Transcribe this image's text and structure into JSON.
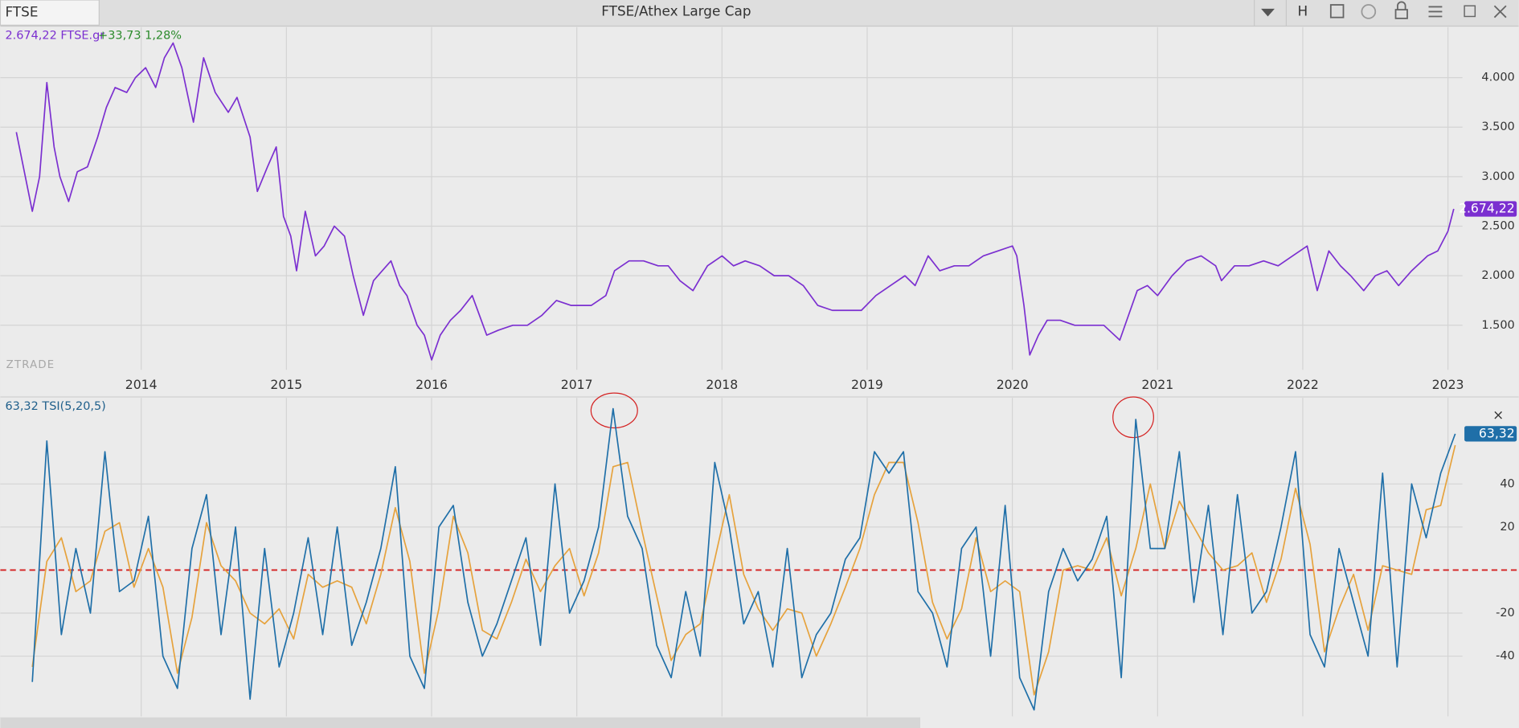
{
  "window": {
    "search": "FTSE",
    "title": "FTSE/Athex Large Cap",
    "button": "H",
    "close": "×"
  },
  "watermark": "ZTRADE",
  "chart_data": [
    {
      "type": "line",
      "legend_price": "2.674,22 FTSE.gr",
      "legend_change": "+33,73 1,28%",
      "x": [
        2013.14,
        2013.25,
        2013.3,
        2013.35,
        2013.4,
        2013.44,
        2013.5,
        2013.56,
        2013.63,
        2013.7,
        2013.76,
        2013.82,
        2013.9,
        2013.96,
        2014.03,
        2014.1,
        2014.16,
        2014.22,
        2014.28,
        2014.36,
        2014.43,
        2014.51,
        2014.6,
        2014.66,
        2014.75,
        2014.8,
        2014.87,
        2014.93,
        2014.98,
        2015.03,
        2015.07,
        2015.13,
        2015.2,
        2015.26,
        2015.33,
        2015.4,
        2015.46,
        2015.53,
        2015.6,
        2015.66,
        2015.72,
        2015.78,
        2015.83,
        2015.9,
        2015.95,
        2016.0,
        2016.06,
        2016.13,
        2016.2,
        2016.28,
        2016.33,
        2016.38,
        2016.46,
        2016.56,
        2016.66,
        2016.76,
        2016.86,
        2016.96,
        2017.1,
        2017.2,
        2017.26,
        2017.36,
        2017.46,
        2017.56,
        2017.63,
        2017.71,
        2017.8,
        2017.9,
        2018.0,
        2018.08,
        2018.16,
        2018.26,
        2018.36,
        2018.46,
        2018.56,
        2018.66,
        2018.76,
        2018.86,
        2018.96,
        2019.06,
        2019.16,
        2019.26,
        2019.33,
        2019.42,
        2019.5,
        2019.6,
        2019.7,
        2019.8,
        2019.9,
        2020.0,
        2020.03,
        2020.08,
        2020.12,
        2020.18,
        2020.24,
        2020.33,
        2020.43,
        2020.53,
        2020.63,
        2020.74,
        2020.8,
        2020.86,
        2020.93,
        2021.0,
        2021.1,
        2021.2,
        2021.3,
        2021.4,
        2021.44,
        2021.53,
        2021.63,
        2021.73,
        2021.83,
        2021.93,
        2022.03,
        2022.1,
        2022.18,
        2022.26,
        2022.33,
        2022.42,
        2022.5,
        2022.58,
        2022.66,
        2022.75,
        2022.86,
        2022.93,
        2023.0,
        2023.04
      ],
      "series": [
        {
          "color": "#7b2fd0",
          "values": [
            3450,
            2650,
            3000,
            3950,
            3300,
            3000,
            2750,
            3050,
            3100,
            3400,
            3700,
            3900,
            3850,
            4000,
            4100,
            3900,
            4200,
            4350,
            4100,
            3550,
            4200,
            3850,
            3650,
            3800,
            3400,
            2850,
            3100,
            3300,
            2600,
            2400,
            2050,
            2650,
            2200,
            2300,
            2500,
            2400,
            2000,
            1600,
            1950,
            2050,
            2150,
            1900,
            1800,
            1500,
            1400,
            1150,
            1400,
            1550,
            1650,
            1800,
            1600,
            1400,
            1450,
            1500,
            1500,
            1600,
            1750,
            1700,
            1700,
            1800,
            2050,
            2150,
            2150,
            2100,
            2100,
            1950,
            1850,
            2100,
            2200,
            2100,
            2150,
            2100,
            2000,
            2000,
            1900,
            1700,
            1650,
            1650,
            1650,
            1800,
            1900,
            2000,
            1900,
            2200,
            2050,
            2100,
            2100,
            2200,
            2250,
            2300,
            2200,
            1700,
            1200,
            1400,
            1550,
            1550,
            1500,
            1500,
            1500,
            1350,
            1600,
            1850,
            1900,
            1800,
            2000,
            2150,
            2200,
            2100,
            1950,
            2100,
            2100,
            2150,
            2100,
            2200,
            2300,
            1850,
            2250,
            2100,
            2000,
            1850,
            2000,
            2050,
            1900,
            2050,
            2200,
            2250,
            2450,
            2674.22
          ]
        }
      ],
      "last_label": "2.674,22",
      "xlim": [
        2013.03,
        2023.1
      ],
      "xticks": [
        2014,
        2015,
        2016,
        2017,
        2018,
        2019,
        2020,
        2021,
        2022,
        2023
      ],
      "ylim": [
        1050,
        4510
      ],
      "yticks": [
        {
          "value": 1500,
          "label": "1.500"
        },
        {
          "value": 2000,
          "label": "2.000"
        },
        {
          "value": 2500,
          "label": "2.500"
        },
        {
          "value": 3000,
          "label": "3.000"
        },
        {
          "value": 3500,
          "label": "3.500"
        },
        {
          "value": 4000,
          "label": "4.000"
        }
      ],
      "grid": true
    },
    {
      "type": "line",
      "legend": "63,32 TSI(5,20,5)",
      "x": [
        2013.25,
        2013.35,
        2013.45,
        2013.55,
        2013.65,
        2013.75,
        2013.85,
        2013.95,
        2014.05,
        2014.15,
        2014.25,
        2014.35,
        2014.45,
        2014.55,
        2014.65,
        2014.75,
        2014.85,
        2014.95,
        2015.05,
        2015.15,
        2015.25,
        2015.35,
        2015.45,
        2015.55,
        2015.65,
        2015.75,
        2015.85,
        2015.95,
        2016.05,
        2016.15,
        2016.25,
        2016.35,
        2016.45,
        2016.55,
        2016.65,
        2016.75,
        2016.85,
        2016.95,
        2017.05,
        2017.15,
        2017.25,
        2017.35,
        2017.45,
        2017.55,
        2017.65,
        2017.75,
        2017.85,
        2017.95,
        2018.05,
        2018.15,
        2018.25,
        2018.35,
        2018.45,
        2018.55,
        2018.65,
        2018.75,
        2018.85,
        2018.95,
        2019.05,
        2019.15,
        2019.25,
        2019.35,
        2019.45,
        2019.55,
        2019.65,
        2019.75,
        2019.85,
        2019.95,
        2020.05,
        2020.15,
        2020.25,
        2020.35,
        2020.45,
        2020.55,
        2020.65,
        2020.75,
        2020.85,
        2020.95,
        2021.05,
        2021.15,
        2021.25,
        2021.35,
        2021.45,
        2021.55,
        2021.65,
        2021.75,
        2021.85,
        2021.95,
        2022.05,
        2022.15,
        2022.25,
        2022.35,
        2022.45,
        2022.55,
        2022.65,
        2022.75,
        2022.85,
        2022.95,
        2023.05
      ],
      "series": [
        {
          "color": "#e6a23c",
          "values": [
            -45,
            4,
            15,
            -10,
            -5,
            18,
            22,
            -8,
            10,
            -8,
            -48,
            -22,
            22,
            2,
            -5,
            -20,
            -25,
            -18,
            -32,
            -2,
            -8,
            -5,
            -8,
            -25,
            -2,
            29,
            4,
            -48,
            -18,
            25,
            8,
            -28,
            -32,
            -15,
            5,
            -10,
            2,
            10,
            -12,
            8,
            48,
            50,
            18,
            -12,
            -42,
            -30,
            -25,
            5,
            35,
            -2,
            -18,
            -28,
            -18,
            -20,
            -40,
            -25,
            -8,
            10,
            35,
            50,
            50,
            22,
            -15,
            -32,
            -18,
            15,
            -10,
            -5,
            -10,
            -58,
            -38,
            0,
            2,
            0,
            15,
            -12,
            10,
            40,
            10,
            32,
            20,
            8,
            0,
            2,
            8,
            -15,
            5,
            38,
            12,
            -38,
            -18,
            -2,
            -28,
            2,
            0,
            -2,
            28,
            30,
            58
          ]
        },
        {
          "color": "#1f6fa8",
          "values": [
            -52,
            60,
            -30,
            10,
            -20,
            55,
            -10,
            -5,
            25,
            -40,
            -55,
            10,
            35,
            -30,
            20,
            -60,
            10,
            -45,
            -20,
            15,
            -30,
            20,
            -35,
            -15,
            10,
            48,
            -40,
            -55,
            20,
            30,
            -15,
            -40,
            -25,
            -5,
            15,
            -35,
            40,
            -20,
            -5,
            20,
            75,
            25,
            10,
            -35,
            -50,
            -10,
            -40,
            50,
            20,
            -25,
            -10,
            -45,
            10,
            -50,
            -30,
            -20,
            5,
            15,
            55,
            45,
            55,
            -10,
            -20,
            -45,
            10,
            20,
            -40,
            30,
            -50,
            -65,
            -10,
            10,
            -5,
            5,
            25,
            -50,
            70,
            10,
            10,
            55,
            -15,
            30,
            -30,
            35,
            -20,
            -10,
            20,
            55,
            -30,
            -45,
            10,
            -15,
            -40,
            45,
            -45,
            40,
            15,
            45,
            63.32
          ]
        }
      ],
      "last_label": "63,32",
      "reference_line": 0,
      "reference_color": "#d42020",
      "xlim": [
        2013.03,
        2023.1
      ],
      "ylim": [
        -68,
        80
      ],
      "yticks": [
        -40,
        -20,
        20,
        40
      ],
      "grid": true
    }
  ]
}
